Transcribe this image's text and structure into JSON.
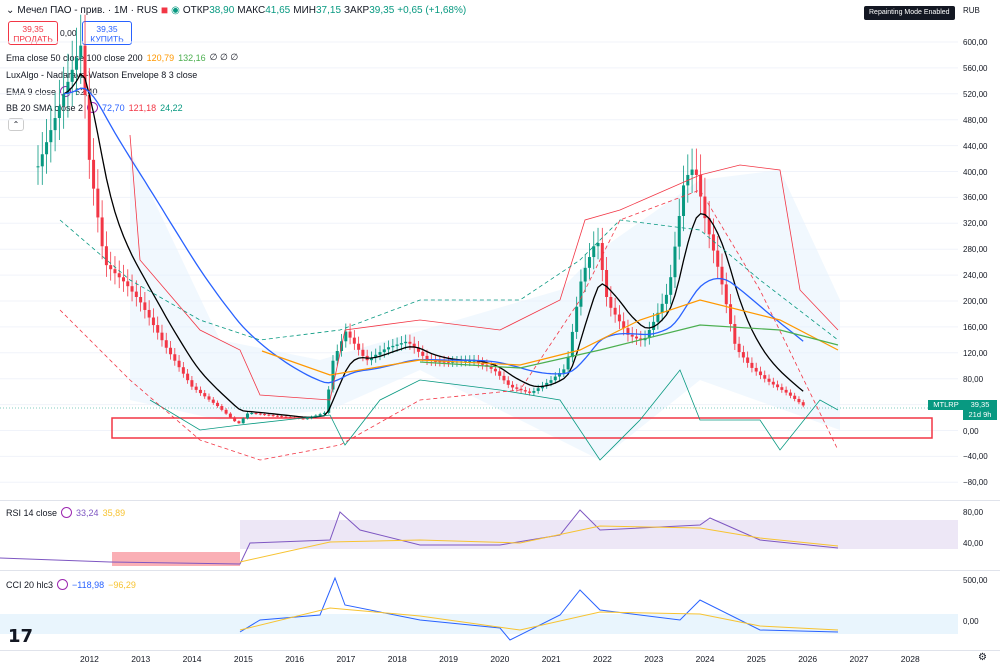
{
  "header": {
    "title": "Мечел ПАО - прив. · 1M · RUS",
    "open_label": "ОТКР",
    "open": "38,90",
    "high_label": "МАКС",
    "high": "41,65",
    "low_label": "МИН",
    "low": "37,15",
    "close_label": "ЗАКР",
    "close": "39,35",
    "change": "+0,65 (+1,68%)"
  },
  "trade": {
    "sell_price": "39,35",
    "sell_label": "ПРОДАТЬ",
    "spread": "0,00",
    "buy_price": "39,35",
    "buy_label": "КУПИТЬ"
  },
  "indicators": {
    "ema3": {
      "label": "Ema close 50 close 100 close 200",
      "v1": "120,79",
      "v2": "132,16",
      "rest": "∅ ∅ ∅"
    },
    "nw": {
      "label": "LuxAlgo - Nadaraya-Watson Envelope 8 3 close"
    },
    "ema9": {
      "label": "EMA 9 close",
      "value": "52,40"
    },
    "bb": {
      "label": "BB 20 SMA close 2",
      "v1": "72,70",
      "v2": "121,18",
      "v3": "24,22"
    },
    "rsi": {
      "label": "RSI 14 close",
      "v1": "33,24",
      "v2": "35,89"
    },
    "cci": {
      "label": "CCI 20 hlc3",
      "v1": "−118,98",
      "v2": "−96,29"
    }
  },
  "badges": {
    "repaint": "Repainting Mode Enabled",
    "currency": "RUB",
    "symbol_tag": "MTLRP",
    "price": "39,35",
    "countdown": "21d 9h"
  },
  "y_axis": [
    "600,00",
    "560,00",
    "520,00",
    "480,00",
    "440,00",
    "400,00",
    "360,00",
    "320,00",
    "280,00",
    "240,00",
    "200,00",
    "160,00",
    "120,00",
    "80,00",
    "40,00",
    "0,00",
    "−40,00",
    "−80,00"
  ],
  "rsi_axis": [
    "80,00",
    "40,00"
  ],
  "cci_axis": [
    "500,00",
    "0,00"
  ],
  "x_axis": [
    "2012",
    "2013",
    "2014",
    "2015",
    "2016",
    "2017",
    "2018",
    "2019",
    "2020",
    "2021",
    "2022",
    "2023",
    "2024",
    "2025",
    "2026",
    "2027",
    "2028"
  ],
  "colors": {
    "up": "#089981",
    "down": "#f23645",
    "ema9": "#000000",
    "ema50": "#2962ff",
    "ema100": "#ff9800",
    "ema200": "#4caf50",
    "band": "#f23645",
    "bb_basis": "#2962ff"
  },
  "chart_data": {
    "type": "candlestick",
    "price_axis": {
      "ylim": [
        -80,
        600
      ]
    },
    "approx_monthly_close_by_year": {
      "x": [
        "2012",
        "2013",
        "2014",
        "2015",
        "2016",
        "2017",
        "2018",
        "2019",
        "2020",
        "2021",
        "2022",
        "2023",
        "2024",
        "2025",
        "2026"
      ],
      "close": [
        250,
        150,
        60,
        25,
        25,
        160,
        115,
        108,
        85,
        95,
        280,
        150,
        410,
        120,
        39
      ]
    }
  }
}
